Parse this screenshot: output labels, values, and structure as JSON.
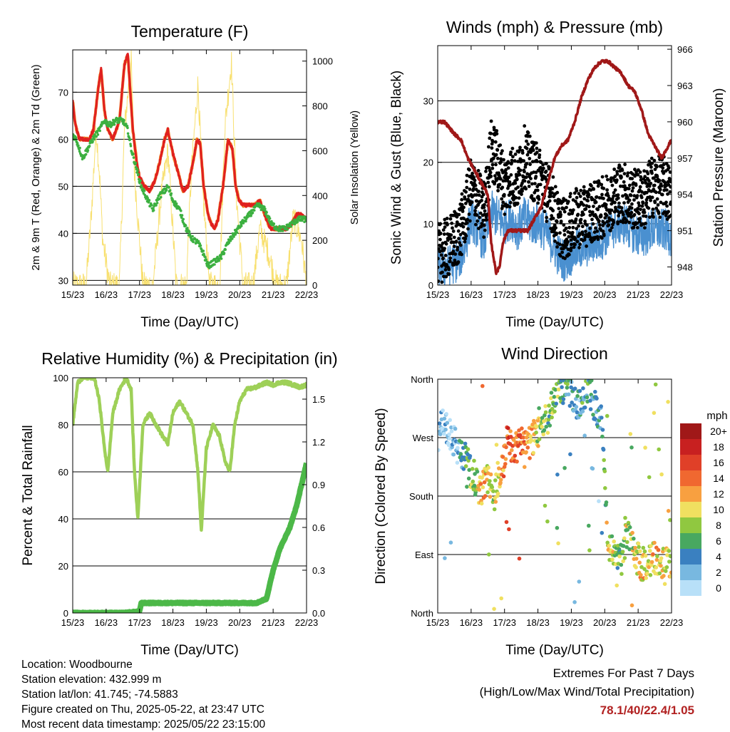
{
  "colors": {
    "temp_2m": "#e02020",
    "temp_9m": "#f08020",
    "dewpoint": "#3cb040",
    "solar": "#f8e070",
    "sonic_wind": "#4a90d0",
    "gust": "#000000",
    "pressure": "#a01818",
    "rh": "#9ed058",
    "precip": "#4cb848",
    "extremes": "#b22222"
  },
  "x_ticks": [
    "15/23",
    "16/23",
    "17/23",
    "18/23",
    "19/23",
    "20/23",
    "21/23",
    "22/23"
  ],
  "panels": {
    "temperature": {
      "title": "Temperature (F)",
      "xlabel": "Time (Day/UTC)",
      "ylabel_left": "2m & 9m T (Red, Orange) & 2m Td (Green)",
      "ylabel_right": "Solar Insolation (Yellow)",
      "left_ticks": [
        "30",
        "40",
        "50",
        "60",
        "70"
      ],
      "right_ticks": [
        "0",
        "200",
        "400",
        "600",
        "800",
        "1000"
      ]
    },
    "winds": {
      "title": "Winds (mph) & Pressure (mb)",
      "xlabel": "Time (Day/UTC)",
      "ylabel_left": "Sonic Wind & Gust (Blue, Black)",
      "ylabel_right": "Station Pressure (Maroon)",
      "left_ticks": [
        "0",
        "10",
        "20",
        "30"
      ],
      "right_ticks": [
        "948",
        "951",
        "954",
        "957",
        "960",
        "963",
        "966"
      ]
    },
    "humidity": {
      "title": "Relative Humidity (%) & Precipitation (in)",
      "xlabel": "Time (Day/UTC)",
      "ylabel_left": "Percent & Total Rainfall",
      "left_ticks": [
        "0",
        "20",
        "40",
        "60",
        "80",
        "100"
      ],
      "right_ticks": [
        "0.0",
        "0.3",
        "0.6",
        "0.9",
        "1.2",
        "1.5"
      ]
    },
    "direction": {
      "title": "Wind Direction",
      "xlabel": "Time (Day/UTC)",
      "ylabel_left": "Direction (Colored By Speed)",
      "left_ticks": [
        "North",
        "East",
        "South",
        "West",
        "North"
      ],
      "legend_unit": "mph",
      "legend_labels": [
        "20+",
        "18",
        "16",
        "14",
        "12",
        "10",
        "8",
        "6",
        "4",
        "2",
        "0"
      ],
      "legend_colors": [
        "#a01818",
        "#c82020",
        "#e04028",
        "#f06830",
        "#f8a040",
        "#f0e060",
        "#90c840",
        "#48a860",
        "#3a80c0",
        "#78b8e0",
        "#b8e0f8"
      ]
    }
  },
  "info": {
    "location": "Location: Woodbourne",
    "elevation": "Station elevation: 432.999 m",
    "latlon": "Station lat/lon: 41.745; -74.5883",
    "created": "Figure created on Thu, 2025-05-22, at 23:47 UTC",
    "recent": "Most recent data timestamp: 2025/05/22 23:15:00"
  },
  "extremes": {
    "title": "Extremes For Past 7 Days",
    "subtitle": "(High/Low/Max Wind/Total Precipitation)",
    "values": "78.1/40/22.4/1.05"
  },
  "chart_data": [
    {
      "type": "line",
      "title": "Temperature (F)",
      "xlabel": "Time (Day/UTC)",
      "ylabel": "2m & 9m T (Red, Orange) & 2m Td (Green)",
      "y2label": "Solar Insolation (Yellow)",
      "xlim": [
        0,
        7
      ],
      "ylim": [
        29,
        79
      ],
      "y2lim": [
        0,
        1050
      ],
      "series": [
        {
          "name": "2m & 9m T (Red, Orange)",
          "axis": "left",
          "x": [
            0,
            0.08,
            0.2,
            0.35,
            0.5,
            0.62,
            0.75,
            0.85,
            0.95,
            1.05,
            1.2,
            1.4,
            1.55,
            1.65,
            1.8,
            1.92,
            2,
            2.15,
            2.3,
            2.45,
            2.6,
            2.75,
            2.85,
            3,
            3.15,
            3.3,
            3.45,
            3.6,
            3.72,
            3.82,
            3.92,
            4.05,
            4.15,
            4.25,
            4.35,
            4.5,
            4.65,
            4.78,
            4.88,
            4.98,
            5.1,
            5.2,
            5.3,
            5.45,
            5.6,
            5.75,
            5.85,
            5.95,
            6.1,
            6.25,
            6.4,
            6.55,
            6.7,
            6.85,
            7
          ],
          "y": [
            68,
            63,
            60,
            60,
            60,
            62,
            70,
            75,
            66,
            62,
            60,
            64,
            76,
            78,
            62,
            55,
            52,
            50,
            49,
            51,
            55,
            60,
            62,
            57,
            53,
            49,
            50,
            55,
            60,
            59,
            50,
            44,
            42,
            41,
            43,
            50,
            60,
            58,
            50,
            47,
            46,
            46,
            46,
            46,
            47,
            44,
            42,
            41,
            41,
            41,
            41,
            42,
            44,
            44,
            43
          ]
        },
        {
          "name": "2m Td (Green)",
          "axis": "left",
          "x": [
            0,
            0.1,
            0.2,
            0.3,
            0.45,
            0.6,
            0.8,
            0.95,
            1.1,
            1.3,
            1.5,
            1.65,
            1.75,
            1.9,
            2.05,
            2.25,
            2.4,
            2.6,
            2.75,
            2.85,
            3,
            3.2,
            3.4,
            3.55,
            3.75,
            3.9,
            4.05,
            4.25,
            4.45,
            4.65,
            4.85,
            5.05,
            5.3,
            5.55,
            5.75,
            5.95,
            6.15,
            6.35,
            6.55,
            6.75,
            7
          ],
          "y": [
            61,
            60,
            58,
            56,
            58,
            60,
            62,
            64,
            63,
            64,
            64,
            62,
            58,
            54,
            50,
            47,
            45,
            48,
            49,
            50,
            47,
            45,
            41,
            39,
            38,
            36,
            33,
            34,
            35,
            38,
            40,
            42,
            44,
            46,
            45,
            42,
            41,
            41,
            42,
            43,
            43
          ]
        },
        {
          "name": "Solar Insolation (Yellow)",
          "axis": "right",
          "x": [
            0,
            0.4,
            0.55,
            0.7,
            0.8,
            0.9,
            1.1,
            1.4,
            1.55,
            1.75,
            1.85,
            2.1,
            2.4,
            2.65,
            2.85,
            3.1,
            3.4,
            3.55,
            3.75,
            3.9,
            4.1,
            4.4,
            4.55,
            4.75,
            4.9,
            5.1,
            5.4,
            5.6,
            5.85,
            6.1,
            6.4,
            6.6,
            6.85,
            7
          ],
          "y": [
            0,
            0,
            300,
            700,
            500,
            200,
            0,
            0,
            700,
            1000,
            500,
            0,
            0,
            400,
            600,
            0,
            0,
            500,
            900,
            400,
            0,
            0,
            700,
            1000,
            400,
            0,
            0,
            250,
            150,
            0,
            0,
            300,
            200,
            0
          ]
        }
      ]
    },
    {
      "type": "line",
      "title": "Winds (mph) & Pressure (mb)",
      "xlabel": "Time (Day/UTC)",
      "ylabel": "Sonic Wind & Gust (Blue, Black)",
      "y2label": "Station Pressure (Maroon)",
      "xlim": [
        0,
        7
      ],
      "ylim": [
        0,
        39
      ],
      "y2lim": [
        946.5,
        966.3
      ],
      "series": [
        {
          "name": "Sonic Wind (Blue)",
          "axis": "left",
          "x": [
            0,
            0.3,
            0.6,
            0.8,
            1,
            1.2,
            1.4,
            1.6,
            1.8,
            2,
            2.2,
            2.4,
            2.6,
            2.8,
            3,
            3.2,
            3.4,
            3.6,
            3.8,
            4,
            4.2,
            4.4,
            4.6,
            4.8,
            5,
            5.2,
            5.4,
            5.6,
            5.8,
            6,
            6.2,
            6.4,
            6.6,
            6.8,
            7
          ],
          "y": [
            3,
            3,
            4,
            6,
            11,
            9,
            7,
            12,
            11,
            10,
            11,
            9,
            11,
            10,
            10,
            9,
            7,
            5,
            4,
            5,
            6,
            6,
            7,
            7,
            8,
            9,
            10,
            10,
            9,
            8,
            8,
            9,
            9,
            9,
            8
          ]
        },
        {
          "name": "Gust (Black)",
          "axis": "left",
          "x": [
            0,
            0.3,
            0.6,
            0.8,
            1,
            1.2,
            1.4,
            1.6,
            1.8,
            2,
            2.2,
            2.4,
            2.6,
            2.8,
            3,
            3.2,
            3.4,
            3.6,
            3.8,
            4,
            4.2,
            4.4,
            4.6,
            4.8,
            5,
            5.2,
            5.4,
            5.6,
            5.8,
            6,
            6.2,
            6.4,
            6.6,
            6.8,
            7
          ],
          "y": [
            5,
            6,
            8,
            11,
            16,
            14,
            12,
            22,
            20,
            16,
            18,
            17,
            21,
            19,
            18,
            16,
            14,
            10,
            9,
            10,
            11,
            11,
            12,
            12,
            13,
            14,
            15,
            15,
            14,
            14,
            14,
            16,
            16,
            16,
            14
          ]
        },
        {
          "name": "Station Pressure (Maroon)",
          "axis": "right",
          "x": [
            0,
            0.2,
            0.5,
            0.7,
            0.9,
            1.1,
            1.3,
            1.5,
            1.6,
            1.75,
            1.85,
            1.95,
            2.1,
            2.3,
            2.5,
            2.7,
            2.9,
            3.1,
            3.3,
            3.5,
            3.7,
            3.9,
            4.1,
            4.3,
            4.5,
            4.7,
            4.9,
            5.1,
            5.3,
            5.5,
            5.7,
            5.9,
            6.1,
            6.3,
            6.5,
            6.7,
            6.9,
            7
          ],
          "y": [
            960,
            960,
            959,
            958.5,
            957,
            956,
            955,
            954,
            950,
            947.5,
            948,
            950,
            951,
            951,
            951,
            951,
            952,
            953,
            955,
            957,
            958,
            958.5,
            960,
            962,
            963.5,
            964.5,
            965,
            965,
            964.5,
            964,
            963,
            962.5,
            961,
            959,
            958,
            957,
            958,
            958.5
          ]
        }
      ]
    },
    {
      "type": "line",
      "title": "Relative Humidity (%) & Precipitation (in)",
      "xlabel": "Time (Day/UTC)",
      "ylabel": "Percent & Total Rainfall",
      "xlim": [
        0,
        7
      ],
      "ylim": [
        0,
        100
      ],
      "y2lim": [
        0,
        1.65
      ],
      "series": [
        {
          "name": "Relative Humidity",
          "axis": "left",
          "x": [
            0,
            0.15,
            0.3,
            0.5,
            0.65,
            0.8,
            0.95,
            1.05,
            1.2,
            1.4,
            1.6,
            1.75,
            1.85,
            1.95,
            2.1,
            2.3,
            2.5,
            2.7,
            2.85,
            3,
            3.2,
            3.4,
            3.6,
            3.75,
            3.85,
            4,
            4.2,
            4.4,
            4.55,
            4.7,
            4.85,
            5,
            5.2,
            5.5,
            5.8,
            6,
            6.2,
            6.4,
            6.6,
            6.8,
            7
          ],
          "y": [
            80,
            98,
            100,
            100,
            100,
            90,
            70,
            60,
            85,
            95,
            100,
            95,
            60,
            40,
            80,
            85,
            80,
            75,
            72,
            85,
            90,
            85,
            80,
            60,
            35,
            70,
            80,
            75,
            65,
            60,
            80,
            90,
            95,
            96,
            98,
            97,
            98,
            98,
            97,
            96,
            97
          ]
        },
        {
          "name": "Total Rainfall",
          "axis": "right",
          "x": [
            0,
            1.5,
            2,
            2.05,
            4,
            5,
            5.5,
            5.8,
            6,
            6.2,
            6.5,
            6.7,
            7
          ],
          "y": [
            0,
            0,
            0.01,
            0.07,
            0.07,
            0.07,
            0.07,
            0.1,
            0.3,
            0.45,
            0.6,
            0.75,
            1.05
          ]
        }
      ]
    },
    {
      "type": "scatter",
      "title": "Wind Direction",
      "xlabel": "Time (Day/UTC)",
      "ylabel": "Direction (Colored By Speed)",
      "xlim": [
        0,
        7
      ],
      "ylim": [
        0,
        360
      ],
      "series": [
        {
          "name": "Direction",
          "x": [
            0.1,
            0.3,
            0.5,
            0.7,
            0.9,
            1.1,
            1.3,
            1.5,
            1.7,
            1.9,
            2.1,
            2.3,
            2.5,
            2.7,
            2.9,
            3.1,
            3.3,
            3.5,
            3.7,
            3.9,
            4.1,
            4.3,
            4.5,
            4.7,
            4.9,
            5.1,
            5.3,
            5.5,
            5.7,
            5.9,
            6.1,
            6.3,
            6.5,
            6.7,
            6.9
          ],
          "y": [
            300,
            280,
            260,
            250,
            230,
            200,
            190,
            210,
            180,
            220,
            260,
            250,
            270,
            260,
            270,
            290,
            300,
            330,
            340,
            350,
            320,
            330,
            350,
            320,
            300,
            100,
            90,
            80,
            130,
            90,
            75,
            80,
            85,
            80,
            80
          ],
          "speed": [
            1,
            2,
            2,
            4,
            6,
            8,
            12,
            10,
            9,
            12,
            15,
            13,
            14,
            12,
            10,
            8,
            7,
            7,
            6,
            5,
            3,
            4,
            5,
            4,
            3,
            10,
            8,
            7,
            9,
            9,
            11,
            10,
            11,
            10,
            10
          ]
        }
      ]
    }
  ]
}
